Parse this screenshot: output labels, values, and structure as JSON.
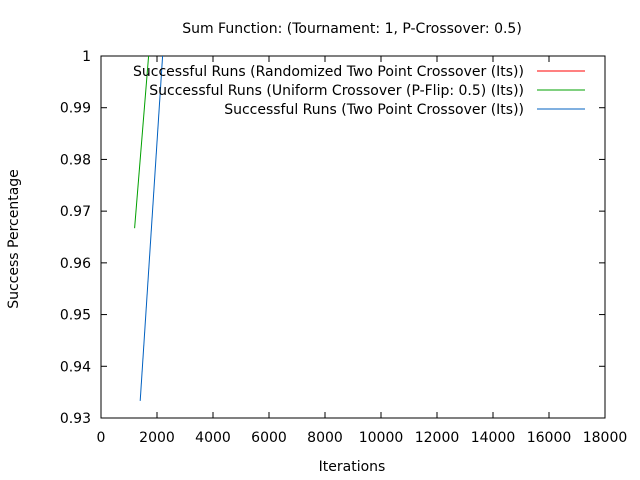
{
  "chart_data": {
    "type": "line",
    "title": "Sum Function:  (Tournament: 1, P-Crossover: 0.5)",
    "xlabel": "Iterations",
    "ylabel": "Success Percentage",
    "xlim": [
      0,
      18000
    ],
    "ylim": [
      0.93,
      1.0
    ],
    "xticks": [
      0,
      2000,
      4000,
      6000,
      8000,
      10000,
      12000,
      14000,
      16000,
      18000
    ],
    "yticks": [
      0.93,
      0.94,
      0.95,
      0.96,
      0.97,
      0.98,
      0.99,
      1
    ],
    "ytick_labels": [
      "0.93",
      "0.94",
      "0.95",
      "0.96",
      "0.97",
      "0.98",
      "0.99",
      "1"
    ],
    "legend_position": "top-right",
    "grid": false,
    "series": [
      {
        "name": "Successful Runs (Randomized Two Point Crossover (Its))",
        "color": "#ff0000",
        "points": []
      },
      {
        "name": "Successful Runs (Uniform Crossover (P-Flip: 0.5) (Its))",
        "color": "#00a000",
        "points": [
          [
            1200,
            0.9667
          ],
          [
            1700,
            1.0
          ]
        ]
      },
      {
        "name": "Successful Runs (Two Point Crossover (Its))",
        "color": "#0060c0",
        "points": [
          [
            1400,
            0.9333
          ],
          [
            2200,
            1.0
          ]
        ]
      }
    ]
  }
}
